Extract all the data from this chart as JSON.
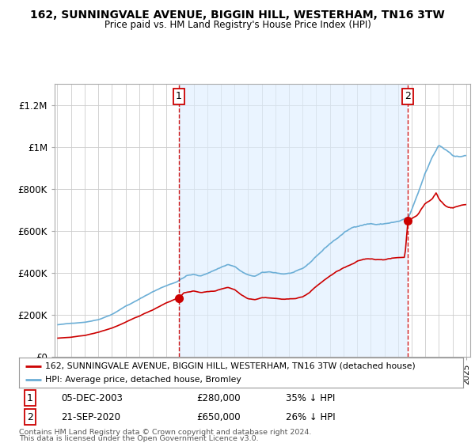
{
  "title": "162, SUNNINGVALE AVENUE, BIGGIN HILL, WESTERHAM, TN16 3TW",
  "subtitle": "Price paid vs. HM Land Registry's House Price Index (HPI)",
  "legend_line1": "162, SUNNINGVALE AVENUE, BIGGIN HILL, WESTERHAM, TN16 3TW (detached house)",
  "legend_line2": "HPI: Average price, detached house, Bromley",
  "annotation1_label": "1",
  "annotation1_date": "05-DEC-2003",
  "annotation1_price": "£280,000",
  "annotation1_hpi": "35% ↓ HPI",
  "annotation2_label": "2",
  "annotation2_date": "21-SEP-2020",
  "annotation2_price": "£650,000",
  "annotation2_hpi": "26% ↓ HPI",
  "footnote1": "Contains HM Land Registry data © Crown copyright and database right 2024.",
  "footnote2": "This data is licensed under the Open Government Licence v3.0.",
  "red_color": "#cc0000",
  "blue_color": "#6baed6",
  "shade_color": "#ddeeff",
  "background_color": "#ffffff",
  "grid_color": "#cccccc",
  "ylim": [
    0,
    1300000
  ],
  "yticks": [
    0,
    200000,
    400000,
    600000,
    800000,
    1000000,
    1200000
  ],
  "ytick_labels": [
    "£0",
    "£200K",
    "£400K",
    "£600K",
    "£800K",
    "£1M",
    "£1.2M"
  ],
  "purchase1_x": 2003.92,
  "purchase1_y": 280000,
  "purchase2_x": 2020.72,
  "purchase2_y": 650000,
  "xmin": 1994.8,
  "xmax": 2025.3
}
